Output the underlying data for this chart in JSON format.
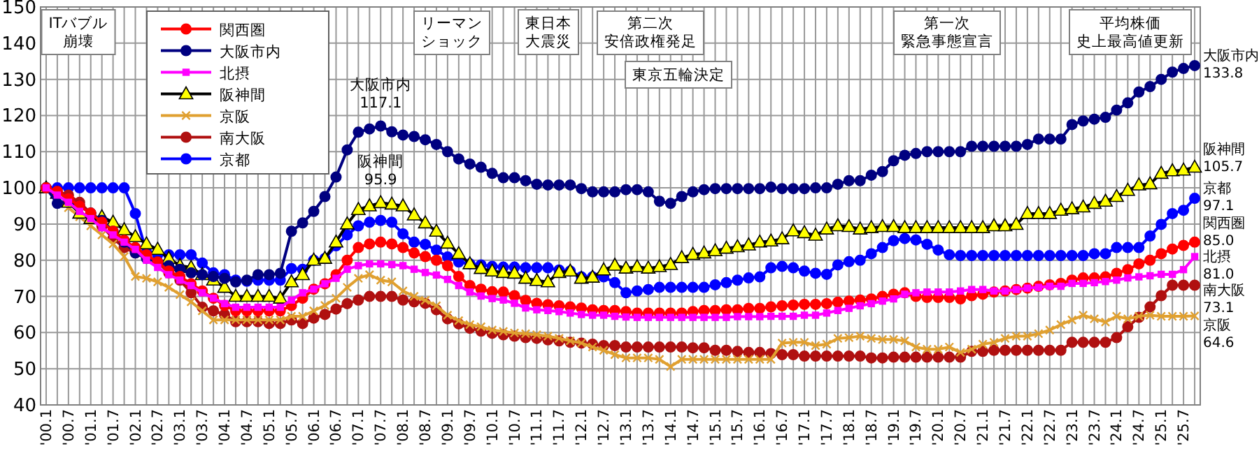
{
  "chart_data": {
    "type": "line",
    "categories": [
      "'00.1",
      null,
      "'00.7",
      null,
      "'01.1",
      null,
      "'01.7",
      null,
      "'02.1",
      null,
      "'02.7",
      null,
      "'03.1",
      null,
      "'03.7",
      null,
      "'04.1",
      null,
      "'04.7",
      null,
      "'05.1",
      null,
      "'05.7",
      null,
      "'06.1",
      null,
      "'06.7",
      null,
      "'07.1",
      null,
      "'07.7",
      null,
      "'08.1",
      null,
      "'08.7",
      null,
      "'09.1",
      null,
      "'09.7",
      null,
      "'10.1",
      null,
      "'10.7",
      null,
      "'11.1",
      null,
      "'11.7",
      null,
      "'12.1",
      null,
      "'12.7",
      null,
      "'13.1",
      null,
      "'13.7",
      null,
      "'14.1",
      null,
      "'14.7",
      null,
      "'15.1",
      null,
      "'15.7",
      null,
      "'16.1",
      null,
      "'16.7",
      null,
      "'17.1",
      null,
      "'17.7",
      null,
      "'18.1",
      null,
      "'18.7",
      null,
      "'19.1",
      null,
      "'19.7",
      null,
      "'20.1",
      null,
      "'20.7",
      null,
      "'21.1",
      null,
      "'21.7",
      null,
      "'22.1",
      null,
      "'22.7",
      null,
      "'23.1",
      null,
      "'23.7",
      null,
      "'24.1",
      null,
      "'24.7",
      null,
      "'25.1",
      null,
      "'25.7",
      null
    ],
    "series": [
      {
        "name": "関西圏",
        "color": "#ff0000",
        "marker": "circle",
        "values": [
          100,
          99,
          97,
          95,
          93,
          90.5,
          88,
          85.5,
          83.5,
          81.5,
          79.5,
          77,
          75.5,
          73.5,
          71.5,
          69.5,
          67.5,
          66,
          66,
          66,
          66,
          66,
          67.5,
          69.5,
          72,
          73.5,
          76,
          80,
          83.5,
          84.5,
          85,
          84.5,
          83.5,
          82,
          81,
          80,
          78.5,
          75.5,
          73,
          72,
          71.3,
          71.2,
          70.2,
          68.9,
          68.1,
          67.7,
          67.4,
          67.1,
          66.8,
          66.3,
          66.1,
          66.1,
          65.8,
          65.4,
          65.4,
          65.4,
          65.4,
          65.4,
          65.8,
          66.1,
          66.1,
          66.3,
          66.3,
          66.7,
          66.7,
          67.1,
          67.4,
          67.6,
          67.8,
          67.8,
          68,
          68.4,
          68.7,
          69,
          69.3,
          70,
          70.6,
          71,
          70,
          69.7,
          69.7,
          69.7,
          69.3,
          70.2,
          70.6,
          71.2,
          71.5,
          71.9,
          72.3,
          72.8,
          73.2,
          73.6,
          74.5,
          75.1,
          75.1,
          75.4,
          76.4,
          77.4,
          79,
          80,
          81.8,
          83.1,
          84.1,
          85
        ]
      },
      {
        "name": "大阪市内",
        "color": "#000080",
        "marker": "circle",
        "values": [
          100,
          95.7,
          96.5,
          95,
          93,
          91,
          88,
          85,
          82,
          80.5,
          79.5,
          78.5,
          77.5,
          76.5,
          76,
          75.5,
          75,
          74,
          74.5,
          76,
          76,
          76.4,
          88,
          90.3,
          93.5,
          97.6,
          103,
          110.5,
          115.4,
          116.3,
          117.1,
          115.5,
          114.6,
          114.2,
          113.3,
          112,
          110,
          108,
          106.6,
          105.7,
          104,
          102.8,
          102.8,
          102,
          101,
          100.8,
          100.8,
          100.8,
          99.8,
          98.9,
          98.9,
          98.9,
          99.5,
          99.5,
          98.9,
          96.3,
          95.7,
          97.6,
          98.9,
          99.5,
          99.8,
          99.8,
          99.8,
          99.8,
          99.8,
          100.2,
          99.8,
          99.8,
          99.8,
          100,
          100,
          101,
          102,
          102,
          103.5,
          104.5,
          107.5,
          109,
          109.5,
          110,
          110,
          110,
          110,
          111.5,
          111.5,
          111.5,
          111.5,
          111.5,
          112,
          113.5,
          113.5,
          113.5,
          117.5,
          118.5,
          119,
          119.5,
          121.5,
          123.5,
          126.5,
          128,
          130,
          132,
          133,
          133.8
        ]
      },
      {
        "name": "北摂",
        "color": "#ff00ff",
        "marker": "square",
        "values": [
          100,
          98,
          96,
          93.5,
          91.5,
          89,
          87,
          85,
          83,
          80,
          78,
          76,
          74.5,
          73,
          71,
          69.5,
          68,
          67,
          67,
          67,
          67,
          67,
          69,
          71,
          72,
          73.5,
          75,
          77.5,
          78.5,
          79,
          79,
          78.8,
          78.5,
          77.5,
          76.6,
          75.9,
          74.7,
          73,
          71.2,
          70.1,
          69.4,
          69,
          68.1,
          66.8,
          66.3,
          66.1,
          65.8,
          65.4,
          65,
          64.8,
          64.8,
          64.5,
          64.3,
          64.2,
          64.2,
          64.2,
          64.2,
          64.2,
          64.2,
          64.2,
          64.2,
          64.2,
          64.4,
          64.4,
          64.4,
          64.5,
          64.5,
          64.5,
          64.8,
          64.8,
          65.4,
          66.1,
          66.7,
          67.4,
          68,
          68.7,
          69.3,
          70.6,
          71,
          71.2,
          71.2,
          71.2,
          71.5,
          71.9,
          71.9,
          71.5,
          71.5,
          71.9,
          72.3,
          72.5,
          72.8,
          72.8,
          73.6,
          73.6,
          73.8,
          74.1,
          74.5,
          75.1,
          75.4,
          75.7,
          76.1,
          76.1,
          77.4,
          81
        ]
      },
      {
        "name": "阪神間",
        "color": "#ffff00",
        "marker": "triangle",
        "values": [
          100,
          98.5,
          96,
          93,
          91.5,
          92,
          90.5,
          88.4,
          86.5,
          84.5,
          83,
          80.5,
          78.5,
          78,
          76,
          74.5,
          72.5,
          70,
          70,
          70,
          70,
          69.5,
          74,
          76,
          80,
          80.5,
          85,
          90,
          94,
          95,
          95.9,
          95.5,
          95,
          92.5,
          90.3,
          88,
          84.7,
          81.8,
          79,
          77.7,
          77,
          76.6,
          76.4,
          75,
          74.4,
          74,
          76.6,
          77,
          75,
          75.3,
          77.3,
          78.6,
          77.8,
          78.2,
          77.8,
          78.2,
          78.8,
          80.7,
          81.6,
          82,
          82.6,
          83.3,
          83.7,
          84.2,
          85,
          85.3,
          85.9,
          88.1,
          87.6,
          86.9,
          88.6,
          89.5,
          89.3,
          88.6,
          89,
          89.3,
          89.3,
          89,
          89,
          89,
          89,
          89,
          89,
          89,
          89,
          89.5,
          89.5,
          89.9,
          92.9,
          92.9,
          92.9,
          93.8,
          94.2,
          94.7,
          95.7,
          96.3,
          97.6,
          99.3,
          100.8,
          101.1,
          104,
          104.7,
          104.9,
          105.7
        ]
      },
      {
        "name": "京阪",
        "color": "#e0a030",
        "marker": "cross",
        "values": [
          100,
          97,
          94.5,
          92,
          89.5,
          87,
          84.5,
          81,
          75.5,
          75,
          74,
          72.5,
          70.5,
          68.5,
          66,
          63.5,
          63.5,
          63.5,
          63.5,
          63.5,
          63.5,
          63.5,
          64.5,
          64.5,
          66,
          67.5,
          69.5,
          72.5,
          75,
          76,
          74.5,
          74,
          71.5,
          70,
          68.9,
          67.4,
          64.8,
          63.3,
          62.2,
          61.6,
          60.7,
          60.3,
          59.9,
          59.7,
          59.4,
          59,
          58.4,
          57.7,
          57.1,
          56,
          55.1,
          53.9,
          53,
          53,
          53,
          52.6,
          50.6,
          52.6,
          52.6,
          52.6,
          52.6,
          52.6,
          52.6,
          52.6,
          52.6,
          52.6,
          57.1,
          57.3,
          57.3,
          56.4,
          56.8,
          58.4,
          58.6,
          59,
          58.4,
          58.1,
          58.1,
          57.7,
          56,
          55.4,
          55.4,
          56,
          54.5,
          55.4,
          56.8,
          57.3,
          58.4,
          59,
          59,
          59.7,
          60.7,
          62.2,
          63.5,
          64.8,
          63.8,
          62.9,
          64.5,
          63.8,
          64.5,
          64.8,
          64.5,
          64.5,
          64.5,
          64.6
        ]
      },
      {
        "name": "南大阪",
        "color": "#b01010",
        "marker": "circle",
        "values": [
          100,
          99,
          98,
          96,
          93,
          89.5,
          86,
          83.5,
          82,
          81,
          79.5,
          76.5,
          74.5,
          71,
          67,
          66,
          65,
          63,
          63,
          63,
          62.5,
          62.5,
          63.5,
          62.5,
          64,
          65,
          66.5,
          68,
          69,
          70,
          70,
          70,
          69,
          68.5,
          68.1,
          66.3,
          63.8,
          62.4,
          61.2,
          60.4,
          59.8,
          59.4,
          59,
          58.6,
          58.4,
          58,
          57.7,
          57.3,
          57.1,
          56.8,
          56.4,
          56.4,
          56,
          56,
          56,
          56,
          56,
          56,
          55.8,
          55.8,
          55.1,
          55.1,
          54.8,
          54.5,
          54.5,
          54.2,
          53.9,
          53.9,
          53.5,
          53.5,
          53.5,
          53.5,
          53.5,
          53.5,
          53,
          53,
          53.2,
          53.2,
          53.2,
          53.2,
          53.2,
          53.2,
          53.2,
          54.8,
          54.8,
          55.1,
          55.1,
          55.1,
          55.1,
          55.1,
          55.1,
          55.1,
          57.3,
          57.3,
          57.3,
          57.3,
          58.6,
          61.6,
          64.2,
          67.1,
          70.2,
          73.1,
          73.1,
          73.1
        ]
      },
      {
        "name": "京都",
        "color": "#0000ff",
        "marker": "circle",
        "values": [
          100,
          100,
          100,
          100,
          100,
          100,
          100,
          100,
          92.9,
          82.2,
          81.5,
          81.5,
          81.5,
          81.5,
          79.2,
          76.5,
          76,
          74.5,
          74.2,
          74.5,
          74.5,
          74.5,
          77.7,
          77.5,
          80,
          80.5,
          84,
          87,
          89.5,
          90.5,
          91,
          90.5,
          87.3,
          85,
          84.4,
          82.8,
          80.9,
          79.5,
          79,
          78.7,
          78.3,
          78.1,
          78.1,
          77.9,
          77.9,
          77.9,
          77.3,
          77,
          75.4,
          75.4,
          75.4,
          73.8,
          71,
          71.5,
          71.9,
          72.5,
          72.5,
          72.5,
          72.5,
          72.5,
          73.2,
          73.8,
          74.5,
          75.1,
          75.4,
          77.9,
          78.3,
          77.9,
          77,
          76.4,
          76.1,
          78.7,
          79.6,
          80,
          81.8,
          83.5,
          85.4,
          86,
          85.6,
          84.4,
          82.8,
          81.5,
          81.3,
          81.3,
          81.3,
          81.3,
          81.3,
          81.3,
          81.3,
          81.3,
          81.3,
          81.3,
          81.3,
          81.3,
          81.8,
          81.8,
          83.5,
          83.5,
          83.5,
          86.7,
          89.9,
          92.9,
          93.8,
          97.1
        ]
      }
    ],
    "ylim": [
      40,
      150
    ],
    "yticks": [
      40,
      50,
      60,
      70,
      80,
      90,
      100,
      110,
      120,
      130,
      140,
      150
    ],
    "grid": true,
    "legend": "top left",
    "annotations": [
      "ITバブル崩壊",
      "リーマンショック",
      "東日本大震災",
      "第二次安倍政権発足",
      "東京五輪決定",
      "第一次緊急事態宣言",
      "平均株価史上最高値更新",
      {
        "text": "大阪市内\n117.1",
        "x": "'07.7",
        "y": 117.1
      },
      {
        "text": "阪神間\n95.9",
        "x": "'07.7",
        "y": 95.9
      },
      "大阪市内\n133.8",
      "阪神間\n105.7",
      "京都\n97.1",
      "関西圏\n85.0",
      "北摂\n81.0",
      "南大阪\n73.1",
      "京阪\n64.6"
    ]
  }
}
